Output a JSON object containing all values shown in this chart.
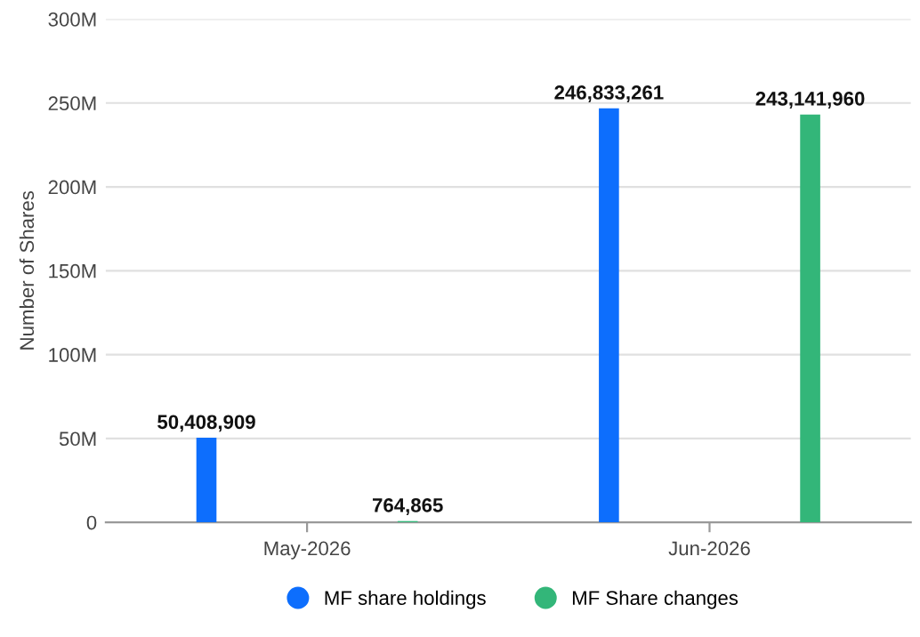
{
  "chart_data": {
    "type": "bar",
    "ylabel": "Number of Shares",
    "categories": [
      "May-2026",
      "Jun-2026"
    ],
    "series": [
      {
        "name": "MF share holdings",
        "color": "#0d6efd",
        "values": [
          50408909,
          246833261
        ],
        "value_labels": [
          "50,408,909",
          "246,833,261"
        ]
      },
      {
        "name": "MF Share changes",
        "color": "#33b679",
        "values": [
          764865,
          243141960
        ],
        "value_labels": [
          "764,865",
          "243,141,960"
        ]
      }
    ],
    "ylim": [
      0,
      300000000
    ],
    "yticks": [
      {
        "value": 0,
        "label": "0"
      },
      {
        "value": 50000000,
        "label": "50M"
      },
      {
        "value": 100000000,
        "label": "100M"
      },
      {
        "value": 150000000,
        "label": "150M"
      },
      {
        "value": 200000000,
        "label": "200M"
      },
      {
        "value": 250000000,
        "label": "250M"
      },
      {
        "value": 300000000,
        "label": "300M"
      }
    ],
    "grid": "y",
    "legend": "bottom"
  }
}
